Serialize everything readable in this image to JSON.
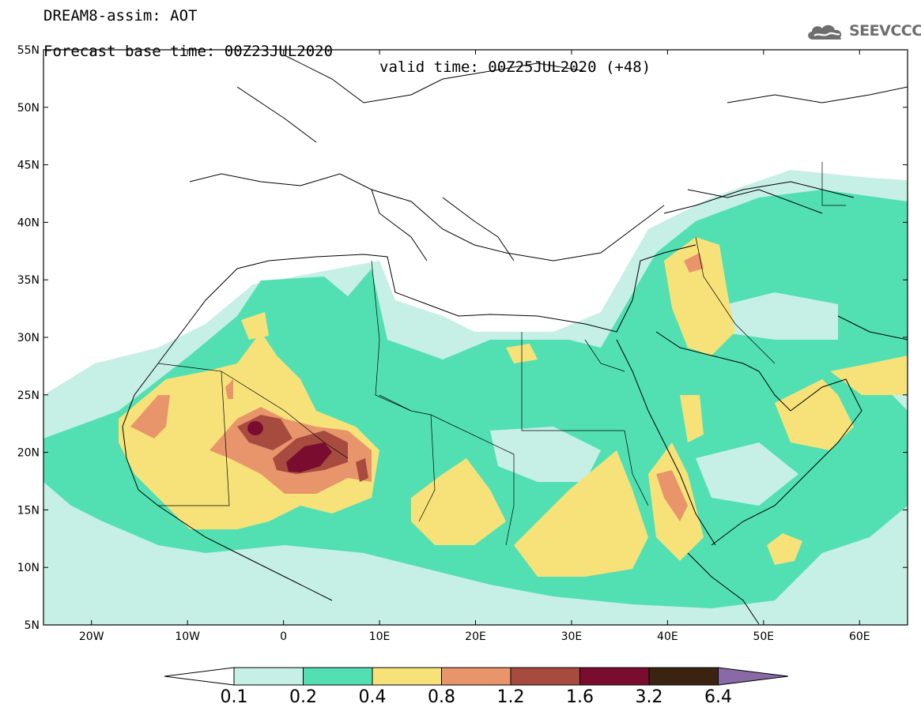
{
  "header": {
    "line1": "DREAM8-assim: AOT",
    "base_time_label": "Forecast base time: 00Z23JUL2020",
    "valid_time_label": "valid time: 00Z25JUL2020 (+48)"
  },
  "logo": {
    "text": "SEEVCCC",
    "icon": "cloud-icon"
  },
  "map": {
    "lon_range": [
      -25,
      65
    ],
    "lat_range": [
      5,
      55
    ],
    "lat_ticks": [
      {
        "value": 55,
        "label": "55N"
      },
      {
        "value": 50,
        "label": "50N"
      },
      {
        "value": 45,
        "label": "45N"
      },
      {
        "value": 40,
        "label": "40N"
      },
      {
        "value": 35,
        "label": "35N"
      },
      {
        "value": 30,
        "label": "30N"
      },
      {
        "value": 25,
        "label": "25N"
      },
      {
        "value": 20,
        "label": "20N"
      },
      {
        "value": 15,
        "label": "15N"
      },
      {
        "value": 10,
        "label": "10N"
      },
      {
        "value": 5,
        "label": "5N"
      }
    ],
    "lon_ticks": [
      {
        "value": -20,
        "label": "20W"
      },
      {
        "value": -10,
        "label": "10W"
      },
      {
        "value": 0,
        "label": "0"
      },
      {
        "value": 10,
        "label": "10E"
      },
      {
        "value": 20,
        "label": "20E"
      },
      {
        "value": 30,
        "label": "30E"
      },
      {
        "value": 40,
        "label": "40E"
      },
      {
        "value": 50,
        "label": "50E"
      },
      {
        "value": 60,
        "label": "60E"
      }
    ],
    "coastline_color": "#000000"
  },
  "colorbar": {
    "labels": [
      "0.1",
      "0.2",
      "0.4",
      "0.8",
      "1.2",
      "1.6",
      "3.2",
      "6.4"
    ],
    "colors": [
      "#ffffff",
      "#c6efe6",
      "#52e0b3",
      "#f7e27a",
      "#e8956b",
      "#a84b3f",
      "#7a0d2f",
      "#3a2310",
      "#8a6aa6"
    ]
  }
}
